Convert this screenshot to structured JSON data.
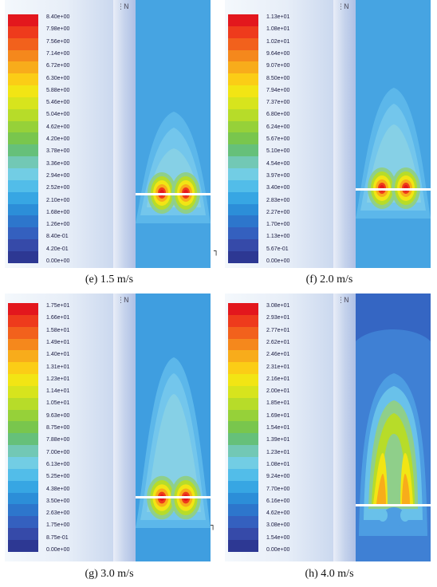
{
  "panels": [
    {
      "caption": "(e) 1.5 m/s",
      "labels": [
        "8.40e+00",
        "7.98e+00",
        "7.56e+00",
        "7.14e+00",
        "6.72e+00",
        "6.30e+00",
        "5.88e+00",
        "5.46e+00",
        "5.04e+00",
        "4.62e+00",
        "4.20e+00",
        "3.78e+00",
        "3.36e+00",
        "2.94e+00",
        "2.52e+00",
        "2.10e+00",
        "1.68e+00",
        "1.26e+00",
        "8.40e-01",
        "4.20e-01",
        "0.00e+00"
      ]
    },
    {
      "caption": "(f) 2.0 m/s",
      "labels": [
        "1.13e+01",
        "1.08e+01",
        "1.02e+01",
        "9.64e+00",
        "9.07e+00",
        "8.50e+00",
        "7.94e+00",
        "7.37e+00",
        "6.80e+00",
        "6.24e+00",
        "5.67e+00",
        "5.10e+00",
        "4.54e+00",
        "3.97e+00",
        "3.40e+00",
        "2.83e+00",
        "2.27e+00",
        "1.70e+00",
        "1.13e+00",
        "5.67e-01",
        "0.00e+00"
      ]
    },
    {
      "caption": "(g) 3.0 m/s",
      "labels": [
        "1.75e+01",
        "1.66e+01",
        "1.58e+01",
        "1.49e+01",
        "1.40e+01",
        "1.31e+01",
        "1.23e+01",
        "1.14e+01",
        "1.05e+01",
        "9.63e+00",
        "8.75e+00",
        "7.88e+00",
        "7.00e+00",
        "6.13e+00",
        "5.25e+00",
        "4.38e+00",
        "3.50e+00",
        "2.63e+00",
        "1.75e+00",
        "8.75e-01",
        "0.00e+00"
      ]
    },
    {
      "caption": "(h) 4.0 m/s",
      "labels": [
        "3.08e+01",
        "2.93e+01",
        "2.77e+01",
        "2.62e+01",
        "2.46e+01",
        "2.31e+01",
        "2.16e+01",
        "2.00e+01",
        "1.85e+01",
        "1.69e+01",
        "1.54e+01",
        "1.39e+01",
        "1.23e+01",
        "1.08e+01",
        "9.24e+00",
        "7.70e+00",
        "6.16e+00",
        "4.62e+00",
        "3.08e+00",
        "1.54e+00",
        "0.00e+00"
      ]
    }
  ],
  "colormap": [
    "#e3171d",
    "#ee3b1c",
    "#f2611c",
    "#f5881c",
    "#f8ac1b",
    "#fbcd16",
    "#f2e514",
    "#d7e41d",
    "#b7dc29",
    "#96d139",
    "#79c64d",
    "#66c07a",
    "#72c8b5",
    "#72cde4",
    "#52bde9",
    "#37a6e3",
    "#2c8ed8",
    "#2d76cc",
    "#3460bf",
    "#364aa9",
    "#2d3893"
  ],
  "axis_glyph": "⋮N"
}
